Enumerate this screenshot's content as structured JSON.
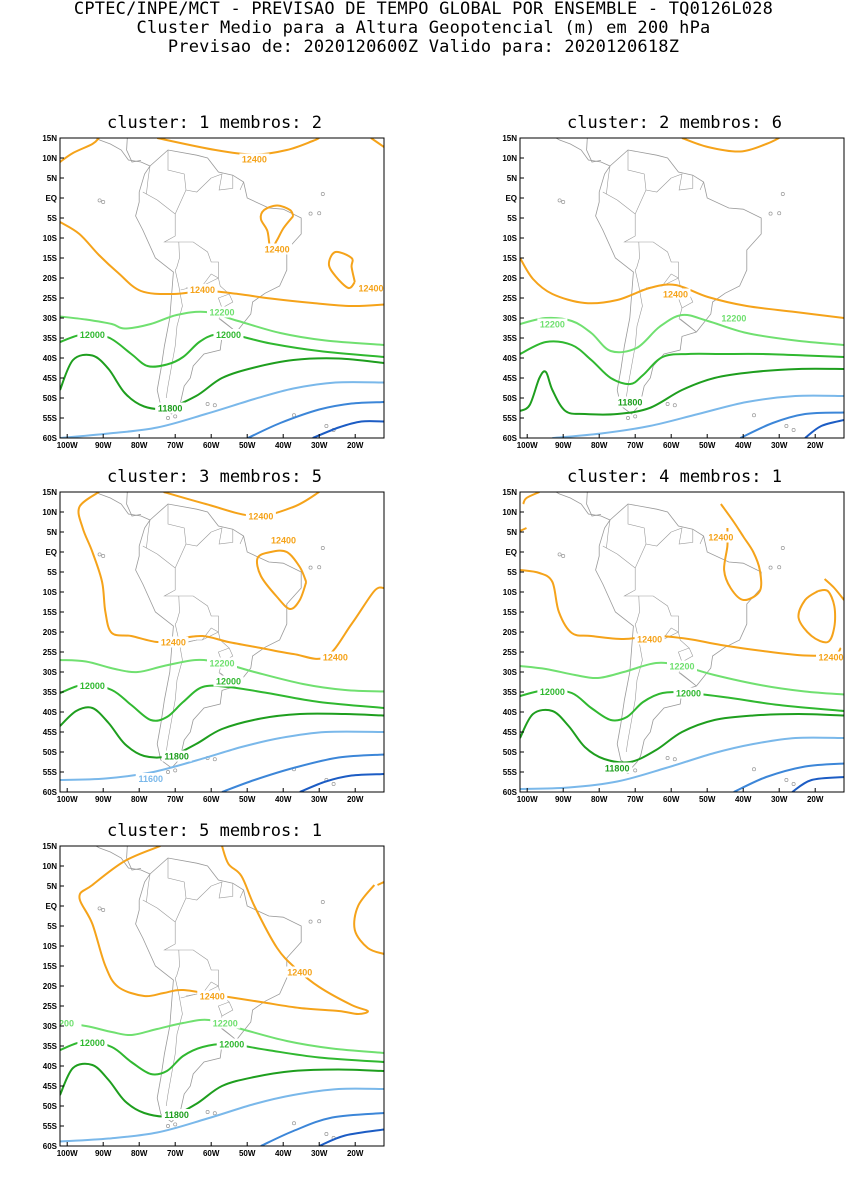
{
  "header": {
    "line1": "CPTEC/INPE/MCT - PREVISAO DE TEMPO GLOBAL POR ENSEMBLE - TQ0126L028",
    "line2": "Cluster Medio para a Altura Geopotencial (m) em 200 hPa",
    "line3": "Previsao de: 2020120600Z   Valido para: 2020120618Z"
  },
  "axes": {
    "lat_labels": [
      "15N",
      "10N",
      "5N",
      "EQ",
      "5S",
      "10S",
      "15S",
      "20S",
      "25S",
      "30S",
      "35S",
      "40S",
      "45S",
      "50S",
      "55S",
      "60S"
    ],
    "lon_labels": [
      "100W",
      "90W",
      "80W",
      "70W",
      "60W",
      "50W",
      "40W",
      "30W",
      "20W"
    ]
  },
  "colors": {
    "c12400": "#f5a31a",
    "c12200": "#70e070",
    "c12000": "#30b830",
    "c11800": "#1e9e1e",
    "c11600": "#7ab8ea",
    "c11400": "#3c86d8",
    "c11200": "#1c5cc4",
    "land": "#9a9a9a"
  },
  "panels": [
    {
      "title": "cluster: 1   membros: 2"
    },
    {
      "title": "cluster: 2   membros: 6"
    },
    {
      "title": "cluster: 3   membros: 5"
    },
    {
      "title": "cluster: 4   membros: 1"
    },
    {
      "title": "cluster: 5   membros: 1"
    }
  ],
  "contour_labels": {
    "p1": [
      "12400",
      "12400",
      "12400",
      "12400",
      "12200",
      "12000",
      "12000",
      "11800"
    ],
    "p2": [
      "12400",
      "12200",
      "12200",
      "11800"
    ],
    "p3": [
      "12400",
      "12400",
      "12400",
      "12400",
      "12200",
      "12000",
      "12000",
      "11800",
      "11600"
    ],
    "p4": [
      "12400",
      "12400",
      "12400",
      "12200",
      "12000",
      "12000",
      "11800"
    ],
    "p5": [
      "12400",
      "12400",
      "200",
      "12200",
      "12000",
      "12000",
      "11800"
    ]
  }
}
